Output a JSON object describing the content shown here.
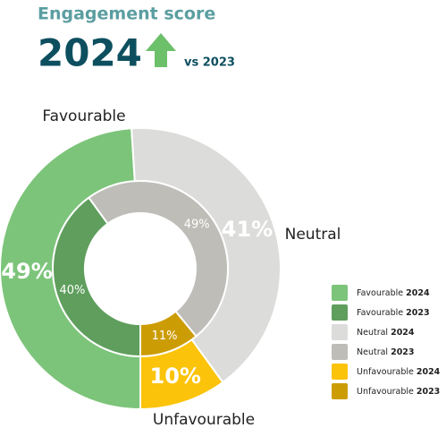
{
  "chart_data": {
    "type": "donut",
    "title": "Engagement score",
    "headline": "2024",
    "comparison": "vs 2023",
    "categories": [
      "Favourable",
      "Neutral",
      "Unfavourable"
    ],
    "series": [
      {
        "name": "2024",
        "values": [
          49,
          41,
          10
        ],
        "value_labels": [
          "49%",
          "41%",
          "10%"
        ],
        "colors": [
          "#7cc47a",
          "#dcdcda",
          "#fbc30a"
        ]
      },
      {
        "name": "2023",
        "values": [
          40,
          49,
          11
        ],
        "value_labels": [
          "40%",
          "49%",
          "11%"
        ],
        "colors": [
          "#5f9e5d",
          "#bebdb8",
          "#cc9c05"
        ]
      }
    ],
    "legend": [
      {
        "label": "Favourable",
        "year": "2024",
        "color": "#7cc47a"
      },
      {
        "label": "Favourable",
        "year": "2023",
        "color": "#5f9e5d"
      },
      {
        "label": "Neutral",
        "year": "2024",
        "color": "#dcdcda"
      },
      {
        "label": "Neutral",
        "year": "2023",
        "color": "#bebdb8"
      },
      {
        "label": "Unfavourable",
        "year": "2024",
        "color": "#fbc30a"
      },
      {
        "label": "Unfavourable",
        "year": "2023",
        "color": "#cc9c05"
      }
    ]
  }
}
